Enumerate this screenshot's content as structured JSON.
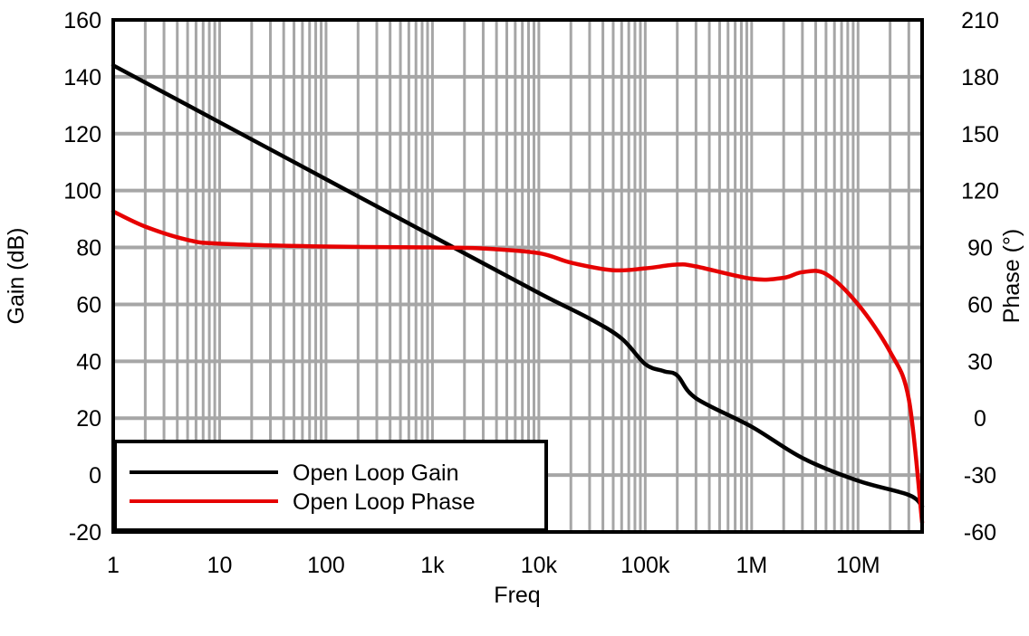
{
  "chart_data": {
    "type": "line",
    "title": "",
    "xlabel": "Freq",
    "ylabel_left": "Gain (dB)",
    "ylabel_right": "Phase (°)",
    "x_scale": "log",
    "xlim": [
      1,
      40000000
    ],
    "ylim_left": [
      -20,
      160
    ],
    "ylim_right": [
      -60,
      210
    ],
    "x_ticks": [
      {
        "value": 1,
        "label": "1"
      },
      {
        "value": 10,
        "label": "10"
      },
      {
        "value": 100,
        "label": "100"
      },
      {
        "value": 1000,
        "label": "1k"
      },
      {
        "value": 10000,
        "label": "10k"
      },
      {
        "value": 100000,
        "label": "100k"
      },
      {
        "value": 1000000,
        "label": "1M"
      },
      {
        "value": 10000000,
        "label": "10M"
      }
    ],
    "y_ticks_left": [
      {
        "value": 160,
        "label": "160"
      },
      {
        "value": 140,
        "label": "140"
      },
      {
        "value": 120,
        "label": "120"
      },
      {
        "value": 100,
        "label": "100"
      },
      {
        "value": 80,
        "label": "80"
      },
      {
        "value": 60,
        "label": "60"
      },
      {
        "value": 40,
        "label": "40"
      },
      {
        "value": 20,
        "label": "20"
      },
      {
        "value": 0,
        "label": "0"
      },
      {
        "value": -20,
        "label": "-20"
      }
    ],
    "y_ticks_right": [
      {
        "value": 210,
        "label": "210"
      },
      {
        "value": 180,
        "label": "180"
      },
      {
        "value": 150,
        "label": "150"
      },
      {
        "value": 120,
        "label": "120"
      },
      {
        "value": 90,
        "label": "90"
      },
      {
        "value": 60,
        "label": "60"
      },
      {
        "value": 30,
        "label": "30"
      },
      {
        "value": 0,
        "label": "0"
      },
      {
        "value": -30,
        "label": "-30"
      },
      {
        "value": -60,
        "label": "-60"
      }
    ],
    "grid": true,
    "legend_position": "bottom-left",
    "series": [
      {
        "name": "Open Loop Gain",
        "axis": "left",
        "color": "#000000",
        "x": [
          1,
          10,
          100,
          1000,
          10000,
          30000,
          60000,
          100000,
          150000,
          200000,
          300000,
          1000000,
          3000000,
          10000000,
          30000000,
          40000000
        ],
        "y": [
          144,
          124,
          104,
          84,
          64,
          55,
          48,
          39,
          36.5,
          35,
          27,
          17,
          6,
          -2,
          -7,
          -11
        ]
      },
      {
        "name": "Open Loop Phase",
        "axis": "right",
        "color": "#e60000",
        "x": [
          1,
          2,
          5,
          10,
          100,
          1000,
          3000,
          10000,
          20000,
          50000,
          100000,
          200000,
          300000,
          1000000,
          2000000,
          3000000,
          5000000,
          10000000,
          20000000,
          30000000,
          40000000
        ],
        "y": [
          109,
          101,
          94,
          92,
          90.5,
          90,
          89.5,
          87,
          82,
          78,
          79,
          81,
          80,
          73.5,
          74,
          77,
          76,
          60,
          35,
          10,
          -55
        ]
      }
    ]
  }
}
